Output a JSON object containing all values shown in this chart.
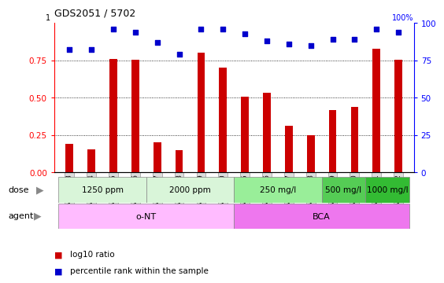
{
  "title": "GDS2051 / 5702",
  "samples": [
    "GSM105783",
    "GSM105784",
    "GSM105785",
    "GSM105786",
    "GSM105787",
    "GSM105788",
    "GSM105789",
    "GSM105790",
    "GSM105775",
    "GSM105776",
    "GSM105777",
    "GSM105778",
    "GSM105779",
    "GSM105780",
    "GSM105781",
    "GSM105782"
  ],
  "log10_ratio": [
    0.19,
    0.155,
    0.76,
    0.755,
    0.2,
    0.148,
    0.8,
    0.7,
    0.505,
    0.535,
    0.31,
    0.25,
    0.42,
    0.44,
    0.83,
    0.755
  ],
  "percentile_rank": [
    82,
    82,
    96,
    94,
    87,
    79,
    96,
    96,
    93,
    88,
    86,
    85,
    89,
    89,
    96,
    94
  ],
  "bar_color": "#cc0000",
  "dot_color": "#0000cc",
  "ylim_left": [
    0,
    1.0
  ],
  "ylim_right": [
    0,
    100
  ],
  "yticks_left": [
    0,
    0.25,
    0.5,
    0.75
  ],
  "yticks_right": [
    0,
    25,
    50,
    75,
    100
  ],
  "dose_groups": [
    {
      "label": "1250 ppm",
      "start": 0,
      "end": 4,
      "color": "#d9f5d9"
    },
    {
      "label": "2000 ppm",
      "start": 4,
      "end": 8,
      "color": "#d9f5d9"
    },
    {
      "label": "250 mg/l",
      "start": 8,
      "end": 12,
      "color": "#99ee99"
    },
    {
      "label": "500 mg/l",
      "start": 12,
      "end": 14,
      "color": "#55cc55"
    },
    {
      "label": "1000 mg/l",
      "start": 14,
      "end": 16,
      "color": "#33bb33"
    }
  ],
  "agent_groups": [
    {
      "label": "o-NT",
      "start": 0,
      "end": 8,
      "color": "#ffbbff"
    },
    {
      "label": "BCA",
      "start": 8,
      "end": 16,
      "color": "#ee77ee"
    }
  ],
  "legend_items": [
    {
      "color": "#cc0000",
      "label": "log10 ratio"
    },
    {
      "color": "#0000cc",
      "label": "percentile rank within the sample"
    }
  ]
}
